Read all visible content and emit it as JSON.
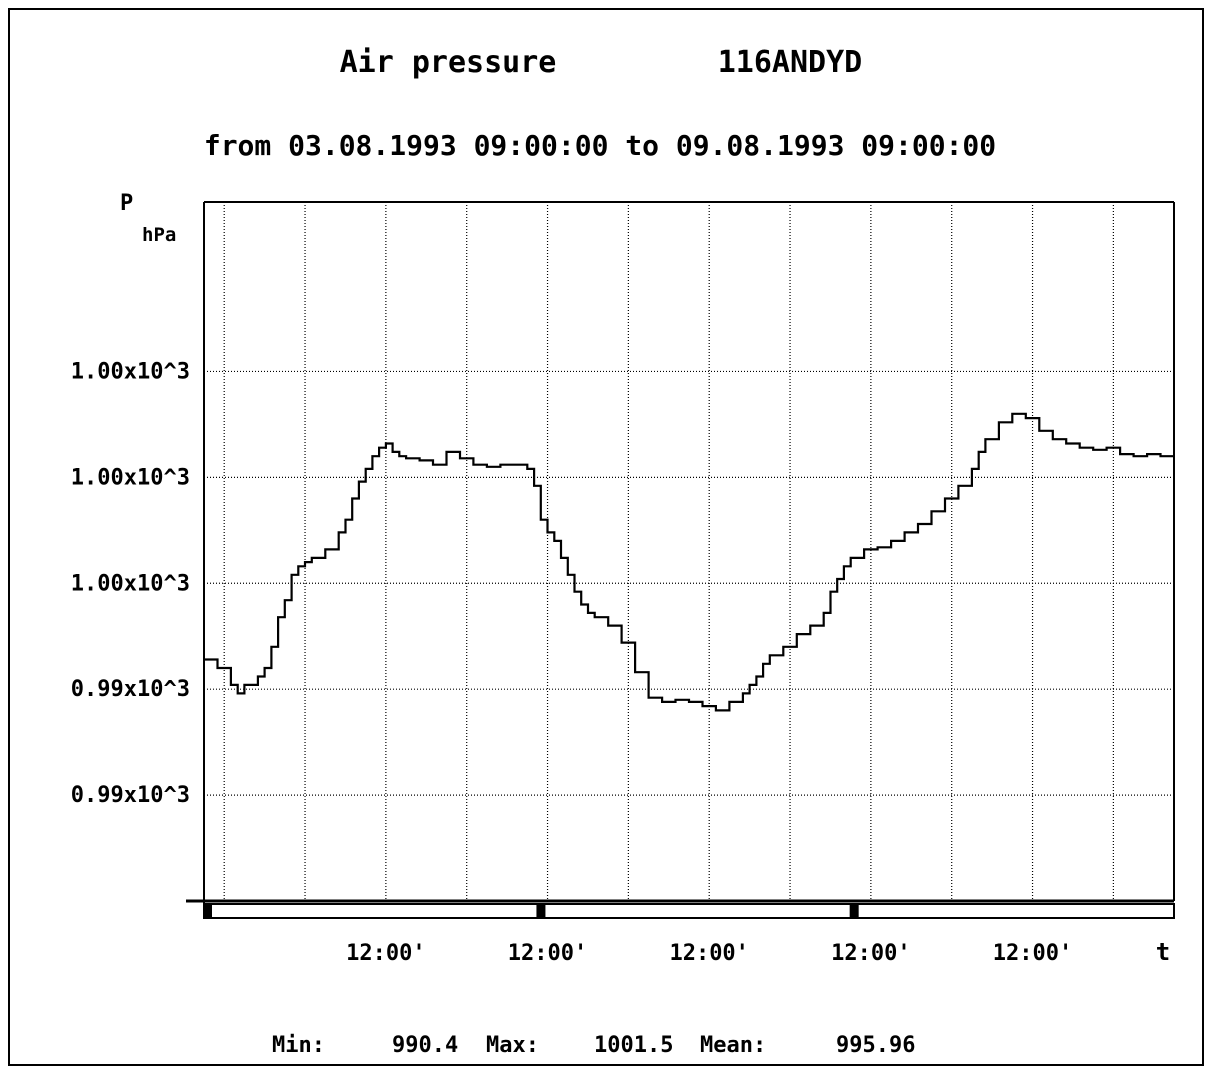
{
  "chart_data": {
    "type": "line",
    "title": "Air pressure",
    "station": "116ANDYD",
    "subtitle": "from 03.08.1993 09:00:00 to 09.08.1993 09:00:00",
    "y_label": "P",
    "y_unit": "hPa",
    "x_label": "t",
    "y_ticks": [
      {
        "label": "1.00x10^3",
        "value": 1002.0
      },
      {
        "label": "1.00x10^3",
        "value": 999.5
      },
      {
        "label": "1.00x10^3",
        "value": 997.0
      },
      {
        "label": "0.99x10^3",
        "value": 994.5
      },
      {
        "label": "0.99x10^3",
        "value": 992.0
      }
    ],
    "ylim": [
      989.5,
      1006.0
    ],
    "x_unit": "hours since 03.08.1993 09:00:00",
    "xlim": [
      0,
      144
    ],
    "x_ticks": [
      {
        "label": "12:00'",
        "hour": 27
      },
      {
        "label": "12:00'",
        "hour": 51
      },
      {
        "label": "12:00'",
        "hour": 75
      },
      {
        "label": "12:00'",
        "hour": 99
      },
      {
        "label": "12:00'",
        "hour": 123
      }
    ],
    "day_marks": [
      0,
      49.5,
      96
    ],
    "minor_grid_hours": [
      3,
      15,
      39,
      63,
      87,
      111,
      135
    ],
    "series": [
      {
        "x": [
          0,
          2,
          4,
          5,
          6,
          8,
          9,
          10,
          11,
          12,
          13,
          14,
          15,
          16,
          18,
          20,
          21,
          22,
          23,
          24,
          25,
          26,
          27,
          28,
          29,
          30,
          32,
          34,
          36,
          38,
          40,
          42,
          44,
          46,
          48,
          49,
          50,
          51,
          52,
          53,
          54,
          55,
          56,
          57,
          58,
          60,
          62,
          64,
          66,
          68,
          70,
          72,
          74,
          76,
          78,
          80,
          81,
          82,
          83,
          84,
          86,
          88,
          90,
          92,
          93,
          94,
          95,
          96,
          98,
          100,
          102,
          104,
          106,
          108,
          110,
          112,
          114,
          115,
          116,
          118,
          120,
          122,
          124,
          126,
          128,
          130,
          132,
          134,
          136,
          138,
          140,
          142,
          144
        ],
        "y": [
          995.2,
          995.0,
          994.6,
          994.4,
          994.6,
          994.8,
          995.0,
          995.5,
          996.2,
          996.6,
          997.2,
          997.4,
          997.5,
          997.6,
          997.8,
          998.2,
          998.5,
          999.0,
          999.4,
          999.7,
          1000.0,
          1000.2,
          1000.3,
          1000.1,
          1000.0,
          999.95,
          999.9,
          999.8,
          1000.1,
          999.95,
          999.8,
          999.75,
          999.8,
          999.8,
          999.7,
          999.3,
          998.5,
          998.2,
          998.0,
          997.6,
          997.2,
          996.8,
          996.5,
          996.3,
          996.2,
          996.0,
          995.6,
          994.9,
          994.3,
          994.2,
          994.25,
          994.2,
          994.1,
          994.0,
          994.2,
          994.4,
          994.6,
          994.8,
          995.1,
          995.3,
          995.5,
          995.8,
          996.0,
          996.3,
          996.8,
          997.1,
          997.4,
          997.6,
          997.8,
          997.85,
          998.0,
          998.2,
          998.4,
          998.7,
          999.0,
          999.3,
          999.7,
          1000.1,
          1000.4,
          1000.8,
          1001.0,
          1000.9,
          1000.6,
          1000.4,
          1000.3,
          1000.2,
          1000.15,
          1000.2,
          1000.05,
          1000.0,
          1000.05,
          1000.0,
          1000.0
        ]
      }
    ],
    "stats": {
      "min_label": "Min:",
      "min_value": "990.4",
      "max_label": "Max:",
      "max_value": "1001.5",
      "mean_label": "Mean:",
      "mean_value": "995.96"
    }
  }
}
